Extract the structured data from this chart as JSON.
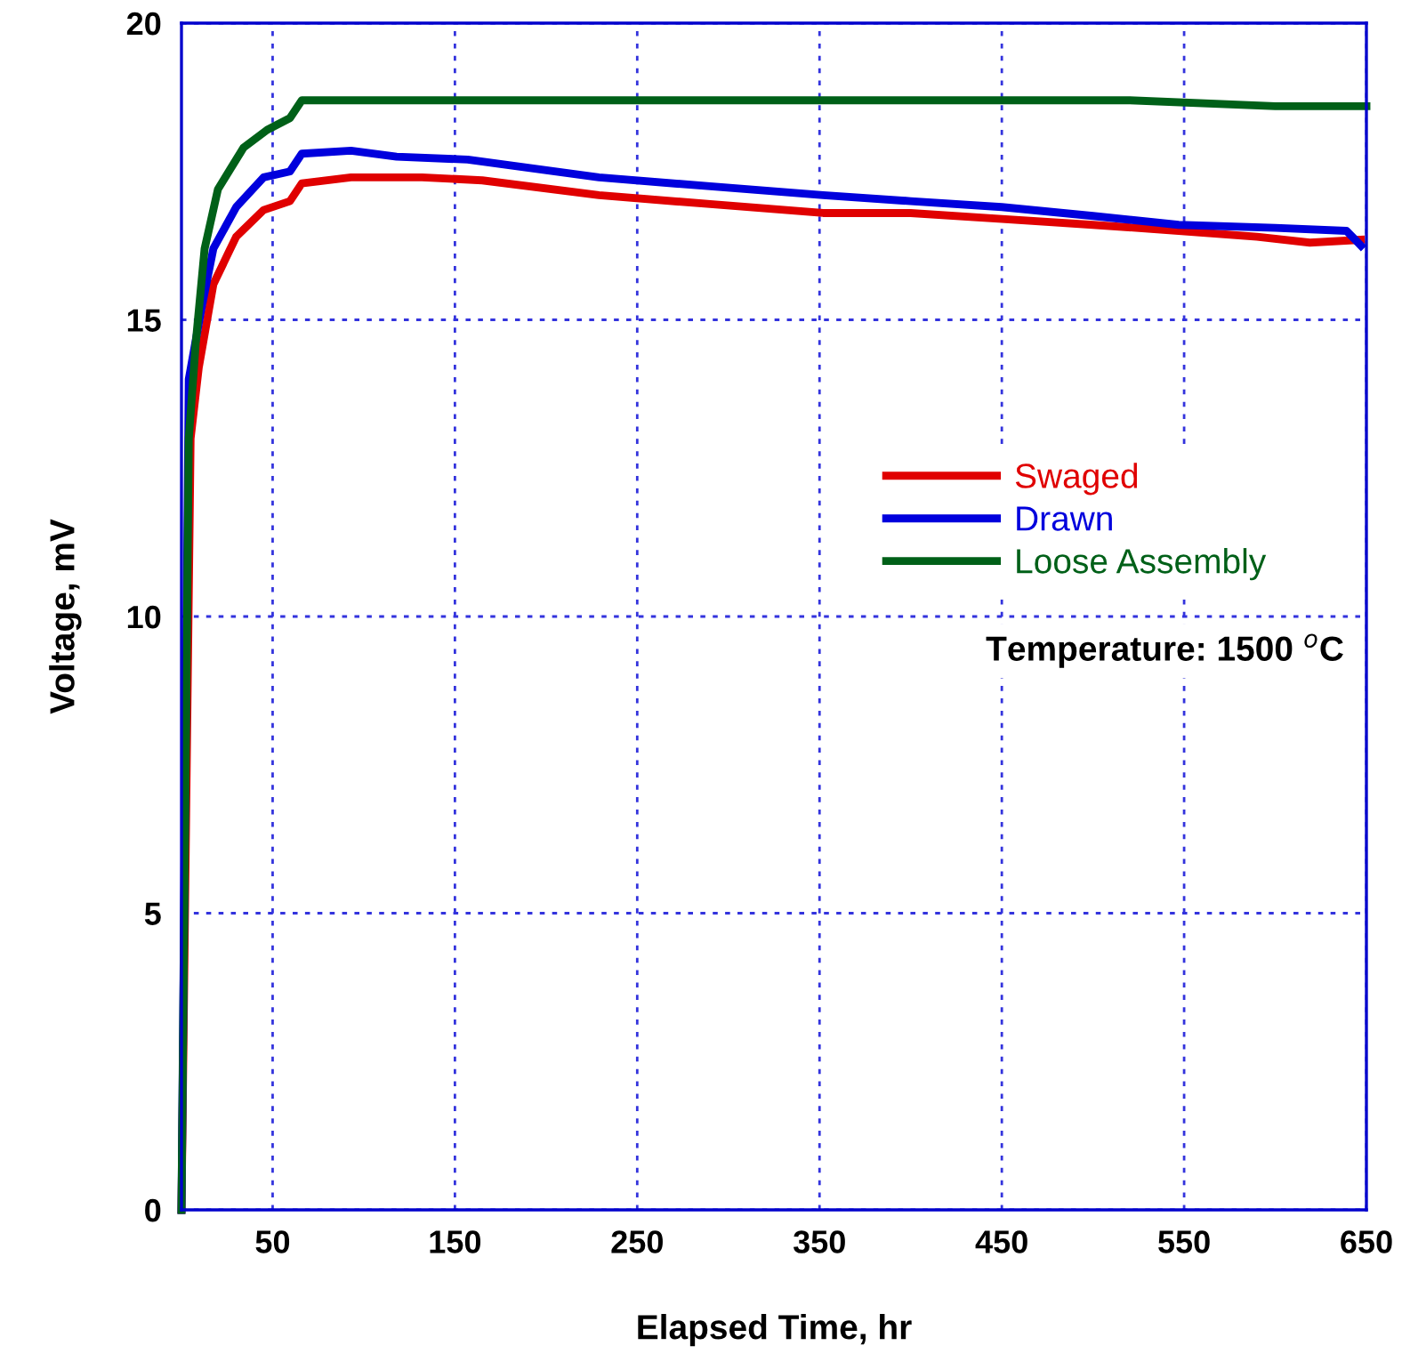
{
  "chart_data": {
    "type": "line",
    "xlabel": "Elapsed Time, hr",
    "ylabel": "Voltage, mV",
    "xlim": [
      0,
      650
    ],
    "xticks": [
      50,
      150,
      250,
      350,
      450,
      550,
      650
    ],
    "ylim": [
      0,
      20
    ],
    "yticks": [
      0,
      5,
      10,
      15,
      20
    ],
    "grid": true,
    "legend": "center right",
    "line_style": "solid",
    "marker": "none",
    "annotations": [
      "Temperature: 1500 $^{o}$C"
    ],
    "series": [
      {
        "name": "Swaged",
        "color": "#e00000",
        "x": [
          0,
          5,
          9.5,
          17.5,
          30,
          45,
          59.5,
          66,
          93,
          132,
          165,
          229,
          290,
          352,
          400,
          450,
          500,
          547,
          590,
          619,
          647
        ],
        "values": [
          0,
          13,
          14.2,
          15.6,
          16.4,
          16.85,
          17.0,
          17.3,
          17.4,
          17.4,
          17.35,
          17.1,
          16.95,
          16.8,
          16.8,
          16.7,
          16.6,
          16.5,
          16.4,
          16.3,
          16.35
        ]
      },
      {
        "name": "Drawn",
        "color": "#0000dd",
        "x": [
          0,
          4,
          11,
          17.5,
          30,
          45,
          59.5,
          66,
          93,
          118,
          157,
          229,
          290,
          352,
          400,
          450,
          500,
          547,
          600,
          639,
          647
        ],
        "values": [
          0,
          14,
          15.2,
          16.2,
          16.9,
          17.4,
          17.5,
          17.8,
          17.85,
          17.75,
          17.7,
          17.4,
          17.25,
          17.1,
          17.0,
          16.9,
          16.75,
          16.6,
          16.55,
          16.5,
          16.25
        ]
      },
      {
        "name": "Loose Assembly",
        "color": "#006018",
        "x": [
          0,
          4,
          7.8,
          12.7,
          20,
          34,
          47,
          59.5,
          66,
          150,
          250,
          350,
          450,
          520,
          600,
          650
        ],
        "values": [
          0,
          13,
          14.6,
          16.2,
          17.2,
          17.9,
          18.2,
          18.4,
          18.7,
          18.7,
          18.7,
          18.7,
          18.7,
          18.7,
          18.6,
          18.6
        ]
      }
    ]
  }
}
